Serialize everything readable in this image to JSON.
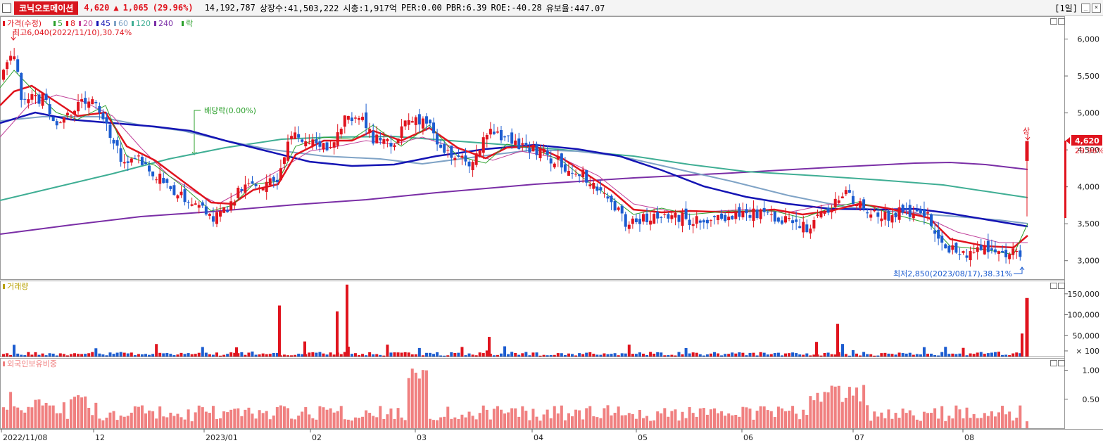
{
  "header": {
    "stock_name": "코닉오토메이션",
    "price": "4,620",
    "arrow": "▲",
    "change": "1,065",
    "change_pct": "(29.96%)",
    "volume": "14,192,787",
    "listed": "상장수:41,503,222",
    "mcap": "시총:1,917억",
    "per": "PER:0.00",
    "pbr": "PBR:6.39",
    "roe": "ROE:-40.28",
    "float": "유보율:447.07",
    "period": "[1일]"
  },
  "colors": {
    "up": "#e0141e",
    "down": "#1c5cd0",
    "ma5": "#2ca02c",
    "ma8": "#e0141e",
    "ma20": "#c0409a",
    "ma45": "#1414b4",
    "ma60": "#7fa3c6",
    "ma120": "#3fae94",
    "ma240": "#7a2ea6",
    "foreign": "#f08080"
  },
  "legend": {
    "price": "가격(수정)",
    "ma5": "5",
    "ma8": "8",
    "ma20": "20",
    "ma45": "45",
    "ma60": "60",
    "ma120": "120",
    "ma240": "240",
    "tail": "락"
  },
  "annotations": {
    "high": "최고6,040(2022/11/10),30.74%",
    "dividend": "배당락(0.00%)",
    "low": "최저2,850(2023/08/17),38.31%",
    "limit_up": "상",
    "last_price": "4,620",
    "last_pct": "29.96%"
  },
  "panels": {
    "volume": "거래량",
    "foreign": "외국인보유비중"
  },
  "chart_data": {
    "type": "candlestick",
    "x_labels": [
      "2022/11/08",
      "12",
      "2023/01",
      "02",
      "03",
      "04",
      "05",
      "06",
      "07",
      "08"
    ],
    "price_axis": [
      6000,
      5500,
      5000,
      4500,
      4000,
      3500,
      3000
    ],
    "price_axis_labels": [
      "6,000",
      "5,500",
      "5,000",
      "4,500",
      "4,000",
      "3,500",
      "3,000"
    ],
    "price_ylim": [
      2750,
      6300
    ],
    "volume_axis": [
      150000,
      100000,
      50000,
      100
    ],
    "volume_axis_labels": [
      "150,000",
      "100,000",
      "50,000",
      "× 100"
    ],
    "volume_ylim": [
      0,
      180000
    ],
    "foreign_axis": [
      1.0,
      0.5
    ],
    "foreign_axis_labels": [
      "1.00",
      "0.50"
    ],
    "foreign_ylim": [
      0,
      1.2
    ],
    "series_names": [
      "가격(수정)",
      "5",
      "8",
      "20",
      "45",
      "60",
      "120",
      "240"
    ],
    "last_price": 4620,
    "high": 6040,
    "low": 2850
  }
}
